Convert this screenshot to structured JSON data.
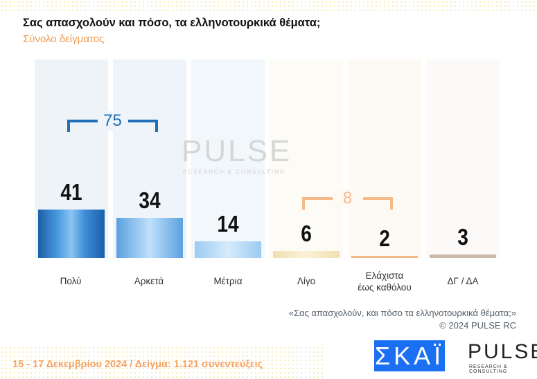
{
  "title": "Σας απασχολούν και πόσο, τα ελληνοτουρκικά θέματα;",
  "subtitle": "Σύνολο δείγματος",
  "chart_data": {
    "type": "bar",
    "categories": [
      "Πολύ",
      "Αρκετά",
      "Μέτρια",
      "Λίγο",
      "Ελάχιστα έως καθόλου",
      "ΔΓ / ΔΑ"
    ],
    "values": [
      41,
      34,
      14,
      6,
      2,
      3
    ],
    "groups": [
      {
        "label": "75",
        "from": 0,
        "to": 1,
        "color": "#1f6fb8"
      },
      {
        "label": "8",
        "from": 3,
        "to": 4,
        "color": "#f5b98a"
      }
    ],
    "ylim": [
      0,
      100
    ]
  },
  "labels": [
    "Πολύ",
    "Αρκετά",
    "Μέτρια",
    "Λίγο",
    "Ελάχιστα",
    "έως καθόλου",
    "ΔΓ / ΔΑ"
  ],
  "note": {
    "question": "«Σας απασχολούν, και πόσο τα ελληνοτουρκικά θέματα;»",
    "copyright": "©  2024  PULSE RC"
  },
  "footer": "15 - 17 Δεκεμβρίου 2024  /  Δείγμα:  1.121 συνεντεύξεις",
  "logos": {
    "skai": "ΣΚΑΪ",
    "pulse": "PULSE",
    "pulse_sub": "RESEARCH & CONSULTING"
  },
  "watermark": {
    "main": "PULSE",
    "sub": "RESEARCH & CONSULTING"
  }
}
